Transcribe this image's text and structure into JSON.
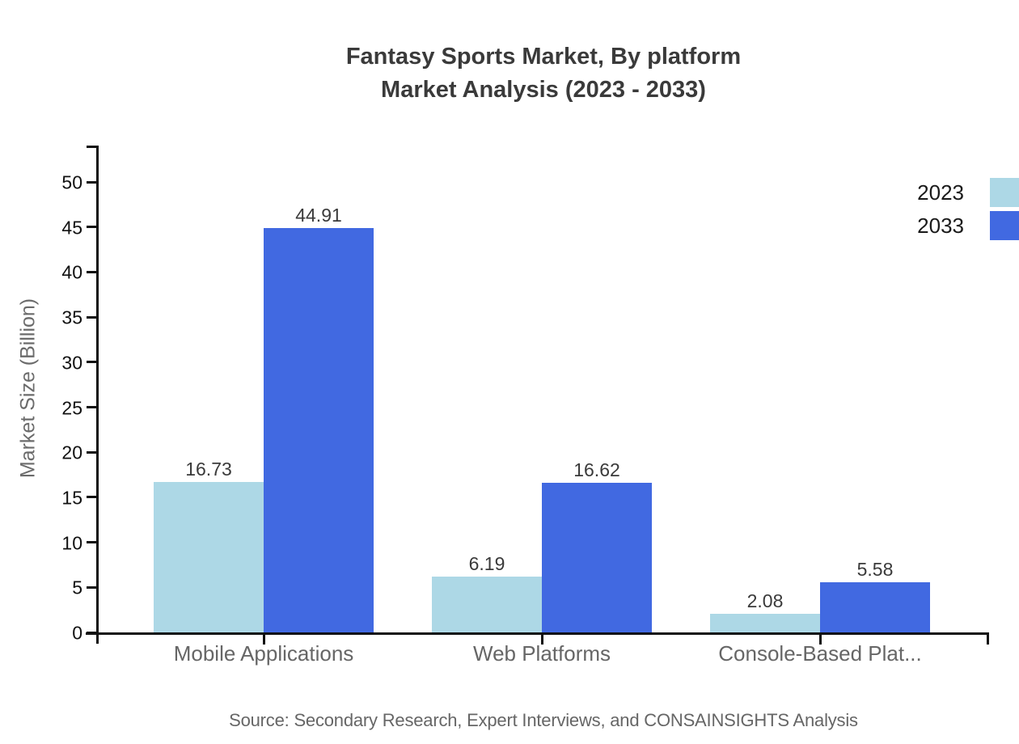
{
  "title": {
    "line1": "Fantasy Sports Market, By platform",
    "line2": "Market Analysis (2023 - 2033)"
  },
  "source": "Source: Secondary Research, Expert Interviews, and CONSAINSIGHTS Analysis",
  "colors": {
    "series_2023": "#ADD8E6",
    "series_2033": "#4169E1",
    "axis": "#111111",
    "title_text": "#3a3a3a",
    "category_text": "#666666",
    "background": "#ffffff"
  },
  "chart_data": {
    "type": "bar",
    "title": "Fantasy Sports Market, By platform Market Analysis (2023 - 2033)",
    "categories": [
      "Mobile Applications",
      "Web Platforms",
      "Console-Based Plat..."
    ],
    "series": [
      {
        "name": "2023",
        "color": "#ADD8E6",
        "values": [
          16.73,
          6.19,
          2.08
        ]
      },
      {
        "name": "2033",
        "color": "#4169E1",
        "values": [
          44.91,
          16.62,
          5.58
        ]
      }
    ],
    "value_labels": [
      "16.73",
      "44.91",
      "6.19",
      "16.62",
      "2.08",
      "5.58"
    ],
    "xlabel": "",
    "ylabel": "Market Size (Billion)",
    "ylim": [
      0,
      55
    ],
    "yticks": [
      0,
      5,
      10,
      15,
      20,
      25,
      30,
      35,
      40,
      45,
      50
    ],
    "grid": false,
    "legend_position": "top-right",
    "legend_entries": [
      "2023",
      "2033"
    ]
  }
}
